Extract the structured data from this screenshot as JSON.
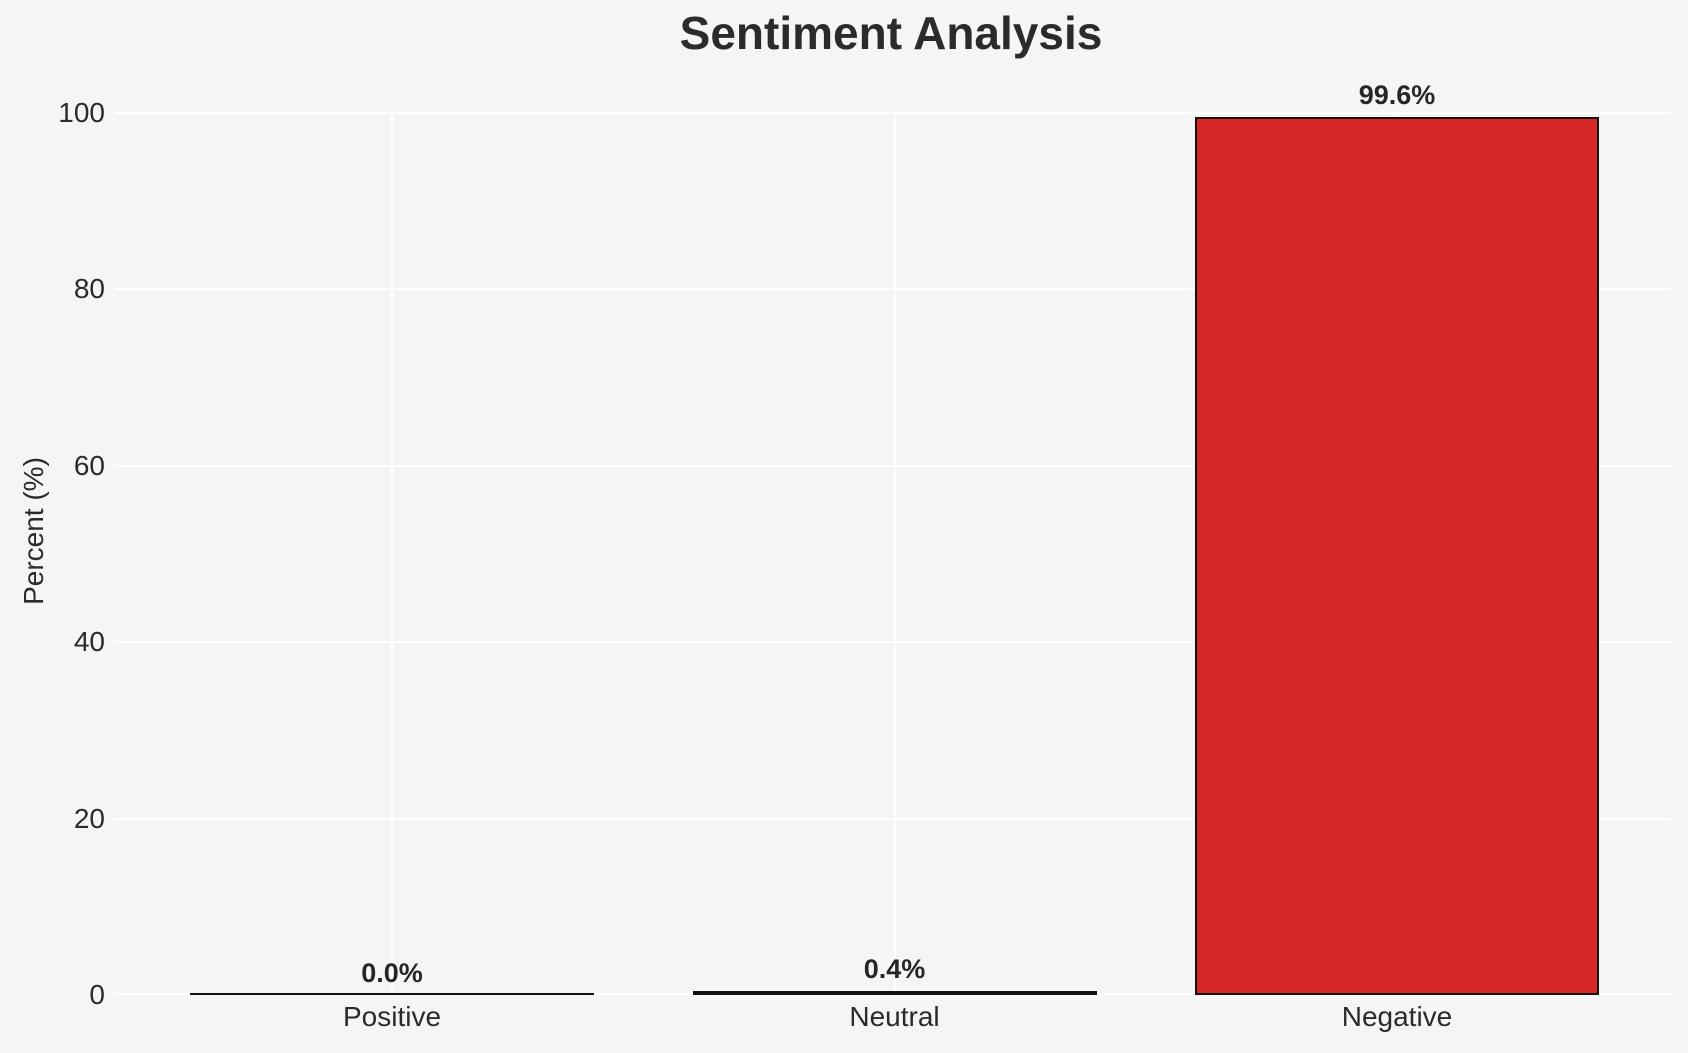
{
  "chart_data": {
    "type": "bar",
    "title": "Sentiment Analysis",
    "categories": [
      "Positive",
      "Neutral",
      "Negative"
    ],
    "values": [
      0.0,
      0.4,
      99.6
    ],
    "value_labels": [
      "0.0%",
      "0.4%",
      "99.6%"
    ],
    "xlabel": "",
    "ylabel": "Percent (%)",
    "ylim": [
      0,
      100
    ],
    "yticks": [
      "0",
      "20",
      "40",
      "60",
      "80",
      "100"
    ],
    "grid": "on",
    "legend": "none",
    "colors": {
      "bar_fill": "#d62728",
      "bar_edge": "#111111",
      "background": "#f5f5f5",
      "gridline": "#ffffff",
      "text": "#262626"
    }
  }
}
